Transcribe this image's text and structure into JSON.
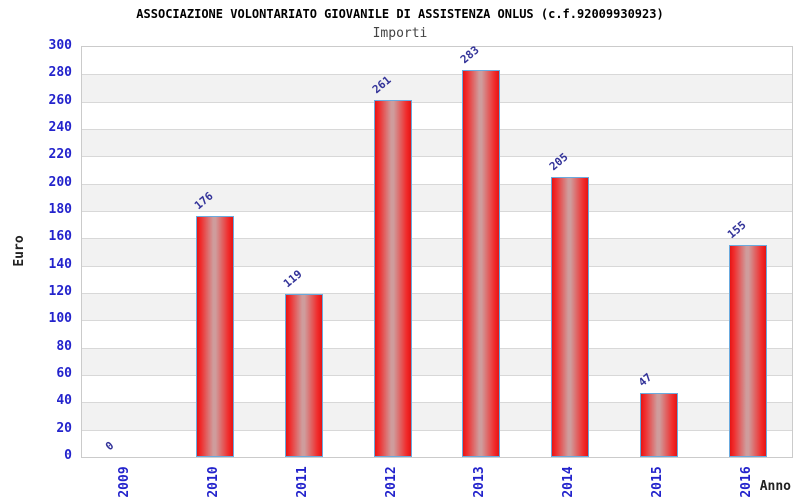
{
  "header": {
    "title": "ASSOCIAZIONE VOLONTARIATO GIOVANILE DI ASSISTENZA ONLUS (c.f.92009930923)",
    "subtitle": "Importi"
  },
  "axes": {
    "y_label": "Euro",
    "x_label": "Anno"
  },
  "chart_data": {
    "type": "bar",
    "title": "ASSOCIAZIONE VOLONTARIATO GIOVANILE DI ASSISTENZA ONLUS (c.f.92009930923)",
    "subtitle": "Importi",
    "xlabel": "Anno",
    "ylabel": "Euro",
    "categories": [
      "2009",
      "2010",
      "2011",
      "2012",
      "2013",
      "2014",
      "2015",
      "2016"
    ],
    "values": [
      0,
      176,
      119,
      261,
      283,
      205,
      47,
      155
    ],
    "ylim": [
      0,
      300
    ],
    "ytick_step": 20,
    "yticks": [
      0,
      20,
      40,
      60,
      80,
      100,
      120,
      140,
      160,
      180,
      200,
      220,
      240,
      260,
      280,
      300
    ],
    "grid": true,
    "legend_position": "none",
    "colors": {
      "bar_fill": "#e51515",
      "bar_fill_bright": "#f12a2a",
      "bar_highlight": "#cf9c9c",
      "bar_border": "#6aaade",
      "tick_label": "#2323cc",
      "value_label": "#333399",
      "band_gray": "#f2f2f2",
      "band_white": "#ffffff",
      "gridline": "#d8d8d8",
      "plot_border": "#cbcbcb",
      "title_color": "#000000",
      "subtitle_color": "#444444",
      "axis_label_color": "#222222"
    }
  }
}
